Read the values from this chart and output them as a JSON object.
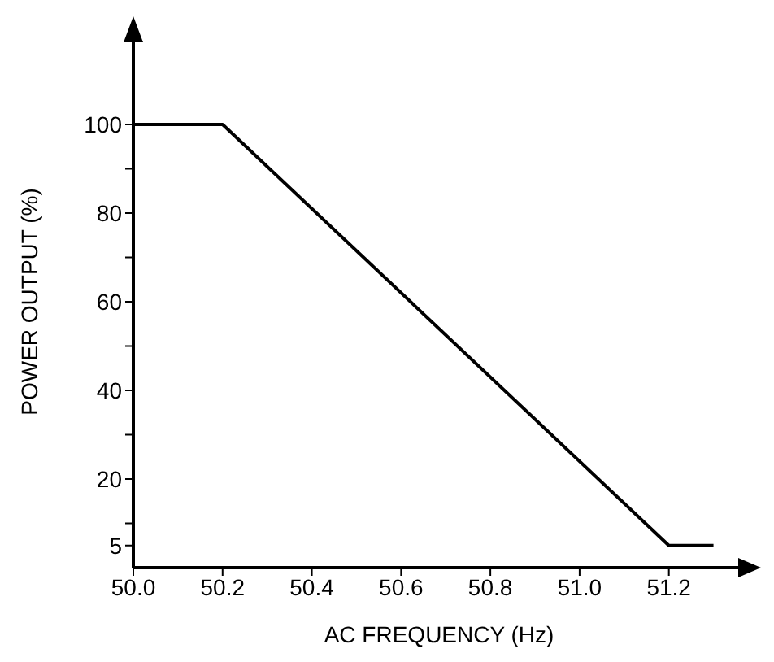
{
  "chart_data": {
    "type": "line",
    "xlabel": "AC FREQUENCY (Hz)",
    "ylabel": "POWER OUTPUT (%)",
    "x": [
      50.0,
      50.2,
      51.2,
      51.3
    ],
    "series": [
      {
        "color": "#000000",
        "values": [
          100,
          100,
          5,
          5
        ]
      }
    ],
    "xlim": [
      50.0,
      51.37
    ],
    "xticks": [
      {
        "value": 50.0,
        "label": "50.0"
      },
      {
        "value": 50.2,
        "label": "50.2"
      },
      {
        "value": 50.4,
        "label": "50.4"
      },
      {
        "value": 50.6,
        "label": "50.6"
      },
      {
        "value": 50.8,
        "label": "50.8"
      },
      {
        "value": 51.0,
        "label": "51.0"
      },
      {
        "value": 51.2,
        "label": "51.2"
      }
    ],
    "ylim": [
      0,
      120
    ],
    "yticks": [
      5,
      {
        "value": 10,
        "label": null
      },
      20,
      {
        "value": 30,
        "label": null
      },
      40,
      {
        "value": 50,
        "label": null
      },
      60,
      {
        "value": 70,
        "label": null
      },
      80,
      {
        "value": 90,
        "label": null
      },
      100
    ],
    "grid": false,
    "legend": false,
    "marker": "none",
    "line_style": "solid"
  }
}
